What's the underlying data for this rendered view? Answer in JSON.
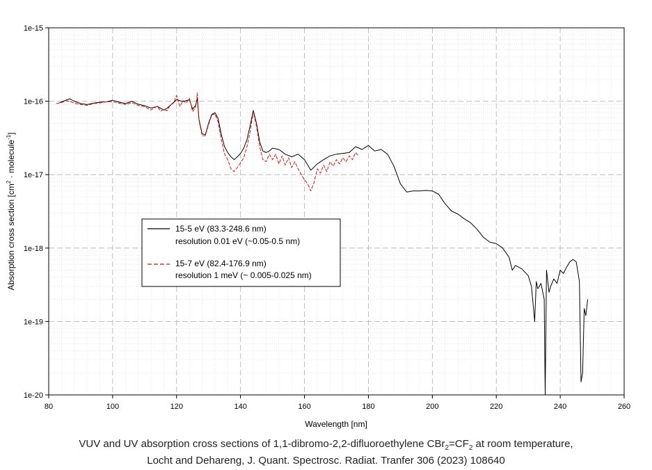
{
  "caption": {
    "line1_parts": [
      "VUV and UV absorption cross sections of 1,1-dibromo-2,2-difluoroethylene CBr",
      "2",
      "=CF",
      "2",
      " at room temperature,"
    ],
    "line2": "Locht and Dehareng, J. Quant. Spectrosc. Radiat. Tranfer 306 (2023) 108640"
  },
  "chart_data": {
    "type": "line",
    "xlabel": "Wavelength [nm]",
    "ylabel_parts": [
      "Absorption cross section [cm",
      "2",
      " · molecule",
      "-1",
      "]"
    ],
    "xlim": [
      80,
      260
    ],
    "ylim": [
      1e-20,
      1e-15
    ],
    "yscale": "log",
    "grid": true,
    "legend_position": "center-left",
    "x_ticks": [
      80,
      100,
      120,
      140,
      160,
      180,
      200,
      220,
      240,
      260
    ],
    "y_tick_labels": [
      "1e-20",
      "1e-19",
      "1e-18",
      "1e-17",
      "1e-16",
      "1e-15"
    ],
    "y_tick_values": [
      1e-20,
      1e-19,
      1e-18,
      1e-17,
      1e-16,
      1e-15
    ],
    "series": [
      {
        "name": "15-5 eV (83.3-248.6 nm)",
        "description": "resolution 0.01 eV (~0.05-0.5 nm)",
        "color": "#000000",
        "dash": "solid",
        "x": [
          83.3,
          85,
          86.5,
          88,
          90,
          92,
          94,
          96,
          98,
          100,
          102,
          104,
          106,
          108,
          110,
          112,
          114,
          116,
          117,
          119,
          120,
          122,
          124,
          125,
          126,
          126.5,
          127,
          128,
          129,
          130,
          131,
          132,
          133,
          134,
          135,
          136,
          137,
          138,
          139,
          140,
          141,
          142,
          143,
          144,
          145,
          146,
          147,
          148,
          149,
          150,
          152,
          154,
          156,
          158,
          160,
          162,
          164,
          166,
          168,
          170,
          172,
          174,
          176,
          178,
          180,
          182,
          184,
          186,
          188,
          190,
          192,
          194,
          196,
          198,
          200,
          202,
          204,
          206,
          208,
          210,
          212,
          214,
          216,
          218,
          220,
          222,
          224,
          225,
          226,
          228,
          230,
          231,
          232,
          232.5,
          233,
          234,
          235,
          235.3,
          235.7,
          236.5,
          237,
          238,
          239,
          240,
          241,
          242,
          243,
          244,
          245,
          246,
          246.5,
          247,
          247.5,
          248,
          248.6
        ],
        "y": [
          9.5e-17,
          1.02e-16,
          1.08e-16,
          1e-16,
          9.3e-17,
          9e-17,
          9.4e-17,
          9.7e-17,
          9.8e-17,
          1.03e-16,
          9.7e-17,
          9.3e-17,
          1e-16,
          9.1e-17,
          8.7e-17,
          8.1e-17,
          8.5e-17,
          7.6e-17,
          8e-17,
          9.6e-17,
          1.05e-16,
          9.9e-17,
          1.05e-16,
          7.8e-17,
          8.8e-17,
          1.1e-16,
          5.7e-17,
          3.6e-17,
          3.5e-17,
          5e-17,
          6.6e-17,
          7e-17,
          5.8e-17,
          3.5e-17,
          2.4e-17,
          2e-17,
          1.75e-17,
          1.6e-17,
          1.75e-17,
          1.95e-17,
          2.3e-17,
          3e-17,
          4.6e-17,
          7.5e-17,
          5e-17,
          2.8e-17,
          2.1e-17,
          2e-17,
          2.1e-17,
          2.3e-17,
          2.2e-17,
          1.9e-17,
          1.75e-17,
          1.9e-17,
          1.6e-17,
          1.15e-17,
          1.4e-17,
          1.6e-17,
          1.8e-17,
          1.9e-17,
          1.95e-17,
          2e-17,
          2.4e-17,
          2.2e-17,
          2.5e-17,
          2.1e-17,
          2.2e-17,
          1.9e-17,
          1.3e-17,
          7.5e-18,
          5.8e-18,
          6e-18,
          6e-18,
          6.1e-18,
          6e-18,
          5.4e-18,
          4e-18,
          3.2e-18,
          2.9e-18,
          2.5e-18,
          2.2e-18,
          1.8e-18,
          1.4e-18,
          1.2e-18,
          1.15e-18,
          1e-18,
          7.5e-19,
          5e-19,
          5.8e-19,
          5.2e-19,
          4.2e-19,
          3e-19,
          1e-19,
          3.5e-19,
          2.8e-19,
          3.3e-19,
          2e-19,
          1e-20,
          5e-19,
          2.5e-19,
          3e-19,
          3.8e-19,
          3.3e-19,
          5e-19,
          4.5e-19,
          5.5e-19,
          6.5e-19,
          7e-19,
          6.5e-19,
          3.5e-19,
          1.5e-20,
          2e-20,
          1.5e-19,
          1.2e-19,
          2e-19
        ]
      },
      {
        "name": "15-7 eV (82.4-176.9 nm)",
        "description": "resolution 1 meV (~ 0.005-0.025 nm)",
        "color": "#dd1111",
        "dash": "dashed",
        "x": [
          82.4,
          84,
          85.5,
          87,
          88,
          90,
          92,
          94,
          96,
          98,
          100,
          102,
          104,
          106,
          108,
          110,
          112,
          114,
          115,
          116,
          117,
          118,
          119,
          120,
          121,
          122,
          123,
          124,
          125,
          126,
          126.5,
          127,
          128,
          129,
          130,
          131,
          132,
          133,
          134,
          135,
          136,
          137,
          138,
          139,
          140,
          141,
          142,
          143,
          144,
          145,
          146,
          147,
          148,
          149,
          150,
          151,
          152,
          153,
          154,
          155,
          156,
          157,
          158,
          159,
          160,
          161,
          162,
          163,
          164,
          165,
          166,
          167,
          168,
          169,
          170,
          171,
          172,
          173,
          174,
          175,
          176,
          176.9
        ],
        "y": [
          9.3e-17,
          9.6e-17,
          1.02e-16,
          9.8e-17,
          9.4e-17,
          9e-17,
          8.8e-17,
          9.3e-17,
          9.5e-17,
          9.8e-17,
          9.9e-17,
          9.4e-17,
          9e-17,
          9.6e-17,
          8.8e-17,
          8.4e-17,
          7.6e-17,
          8.6e-17,
          7.3e-17,
          7.8e-17,
          7.4e-17,
          8.8e-17,
          9.4e-17,
          1.2e-16,
          8.5e-17,
          1.02e-16,
          9.4e-17,
          1.1e-16,
          7.2e-17,
          8.3e-17,
          1.3e-16,
          5.5e-17,
          3.4e-17,
          3.4e-17,
          4.8e-17,
          6.5e-17,
          6.7e-17,
          5.2e-17,
          3e-17,
          1.9e-17,
          1.6e-17,
          1.2e-17,
          1.1e-17,
          1.25e-17,
          1.45e-17,
          1.7e-17,
          2.4e-17,
          3.8e-17,
          7.2e-17,
          4.6e-17,
          2.4e-17,
          1.6e-17,
          1.5e-17,
          1.9e-17,
          1.6e-17,
          1.9e-17,
          1.4e-17,
          1.8e-17,
          1.35e-17,
          1.7e-17,
          1.25e-17,
          1.5e-17,
          1.2e-17,
          1e-17,
          8.5e-18,
          7.5e-18,
          6e-18,
          7.8e-18,
          1.2e-17,
          1.05e-17,
          1.35e-17,
          1.1e-17,
          1.5e-17,
          1.3e-17,
          1.6e-17,
          1.4e-17,
          1.7e-17,
          1.5e-17,
          1.8e-17,
          1.6e-17,
          2e-17,
          1.8e-17
        ]
      }
    ]
  }
}
